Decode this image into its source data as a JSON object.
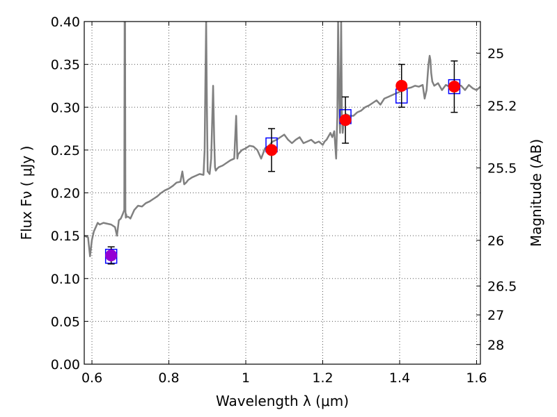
{
  "chart_data": {
    "type": "scatter",
    "title": "",
    "xlabel": "Wavelength  λ (μm)",
    "ylabel": "Flux  Fν  ( μJy )",
    "ylabel_right": "Magnitude (AB)",
    "xlim": [
      0.58,
      1.61
    ],
    "ylim": [
      0,
      0.4
    ],
    "grid": true,
    "x_ticks": [
      {
        "v": 0.6,
        "label": "0.6"
      },
      {
        "v": 0.8,
        "label": "0.8"
      },
      {
        "v": 1.0,
        "label": "1"
      },
      {
        "v": 1.2,
        "label": "1.2"
      },
      {
        "v": 1.4,
        "label": "1.4"
      },
      {
        "v": 1.6,
        "label": "1.6"
      }
    ],
    "y_ticks": [
      {
        "v": 0.0,
        "label": "0.00"
      },
      {
        "v": 0.05,
        "label": "0.05"
      },
      {
        "v": 0.1,
        "label": "0.10"
      },
      {
        "v": 0.15,
        "label": "0.15"
      },
      {
        "v": 0.2,
        "label": "0.20"
      },
      {
        "v": 0.25,
        "label": "0.25"
      },
      {
        "v": 0.3,
        "label": "0.30"
      },
      {
        "v": 0.35,
        "label": "0.35"
      },
      {
        "v": 0.4,
        "label": "0.40"
      }
    ],
    "mag_ticks": [
      {
        "v": 25,
        "label": "25"
      },
      {
        "v": 25.2,
        "label": "25.2"
      },
      {
        "v": 25.5,
        "label": "25.5"
      },
      {
        "v": 26,
        "label": "26"
      },
      {
        "v": 26.5,
        "label": "26.5"
      },
      {
        "v": 27,
        "label": "27"
      },
      {
        "v": 28,
        "label": "28"
      }
    ],
    "series": [
      {
        "kind": "line",
        "color": "#808080",
        "x": [
          0.58,
          0.59,
          0.595,
          0.6,
          0.605,
          0.61,
          0.615,
          0.62,
          0.63,
          0.64,
          0.65,
          0.66,
          0.665,
          0.67,
          0.675,
          0.68,
          0.684,
          0.685,
          0.686,
          0.687,
          0.688,
          0.689,
          0.69,
          0.695,
          0.7,
          0.71,
          0.72,
          0.73,
          0.74,
          0.75,
          0.76,
          0.77,
          0.78,
          0.79,
          0.8,
          0.81,
          0.82,
          0.83,
          0.835,
          0.84,
          0.845,
          0.85,
          0.86,
          0.87,
          0.88,
          0.89,
          0.893,
          0.895,
          0.897,
          0.899,
          0.901,
          0.903,
          0.906,
          0.91,
          0.915,
          0.918,
          0.92,
          0.922,
          0.925,
          0.93,
          0.94,
          0.95,
          0.96,
          0.97,
          0.975,
          0.978,
          0.98,
          0.99,
          1.0,
          1.01,
          1.02,
          1.03,
          1.04,
          1.05,
          1.06,
          1.07,
          1.08,
          1.09,
          1.1,
          1.11,
          1.12,
          1.13,
          1.14,
          1.15,
          1.16,
          1.17,
          1.18,
          1.19,
          1.2,
          1.205,
          1.21,
          1.22,
          1.225,
          1.23,
          1.235,
          1.238,
          1.24,
          1.242,
          1.245,
          1.248,
          1.25,
          1.252,
          1.255,
          1.258,
          1.26,
          1.27,
          1.28,
          1.29,
          1.3,
          1.31,
          1.32,
          1.33,
          1.34,
          1.35,
          1.36,
          1.37,
          1.38,
          1.39,
          1.4,
          1.41,
          1.42,
          1.43,
          1.44,
          1.45,
          1.46,
          1.465,
          1.47,
          1.475,
          1.478,
          1.48,
          1.482,
          1.485,
          1.49,
          1.5,
          1.51,
          1.52,
          1.53,
          1.54,
          1.55,
          1.56,
          1.57,
          1.58,
          1.59,
          1.6,
          1.61
        ],
        "y": [
          0.15,
          0.148,
          0.126,
          0.145,
          0.155,
          0.16,
          0.165,
          0.163,
          0.165,
          0.164,
          0.163,
          0.16,
          0.15,
          0.168,
          0.17,
          0.175,
          0.18,
          0.4,
          0.4,
          0.18,
          0.171,
          0.175,
          0.172,
          0.172,
          0.17,
          0.18,
          0.185,
          0.184,
          0.188,
          0.19,
          0.193,
          0.196,
          0.2,
          0.203,
          0.205,
          0.208,
          0.212,
          0.213,
          0.225,
          0.21,
          0.212,
          0.215,
          0.218,
          0.22,
          0.222,
          0.221,
          0.25,
          0.33,
          0.4,
          0.3,
          0.225,
          0.224,
          0.222,
          0.24,
          0.325,
          0.26,
          0.23,
          0.226,
          0.228,
          0.23,
          0.232,
          0.235,
          0.238,
          0.24,
          0.29,
          0.24,
          0.245,
          0.25,
          0.252,
          0.255,
          0.254,
          0.25,
          0.24,
          0.252,
          0.255,
          0.26,
          0.262,
          0.265,
          0.268,
          0.262,
          0.258,
          0.262,
          0.265,
          0.258,
          0.26,
          0.262,
          0.258,
          0.26,
          0.256,
          0.26,
          0.262,
          0.27,
          0.265,
          0.272,
          0.24,
          0.29,
          0.4,
          0.33,
          0.27,
          0.4,
          0.29,
          0.27,
          0.285,
          0.29,
          0.292,
          0.29,
          0.29,
          0.294,
          0.296,
          0.3,
          0.302,
          0.305,
          0.308,
          0.303,
          0.31,
          0.312,
          0.314,
          0.316,
          0.318,
          0.32,
          0.322,
          0.323,
          0.325,
          0.324,
          0.326,
          0.31,
          0.32,
          0.35,
          0.36,
          0.355,
          0.34,
          0.33,
          0.325,
          0.328,
          0.32,
          0.326,
          0.324,
          0.322,
          0.326,
          0.325,
          0.32,
          0.326,
          0.322,
          0.32,
          0.324
        ]
      },
      {
        "kind": "points",
        "marker": "square",
        "color": "#0000ff",
        "x": [
          0.65,
          1.067,
          1.259,
          1.405,
          1.542
        ],
        "y": [
          0.126,
          0.256,
          0.289,
          0.313,
          0.324
        ]
      },
      {
        "kind": "points",
        "marker": "circle",
        "color": "#ff0000",
        "x": [
          0.65,
          1.067,
          1.259,
          1.405,
          1.542
        ],
        "y": [
          0.127,
          0.25,
          0.285,
          0.325,
          0.324
        ],
        "yerr": [
          0.01,
          0.025,
          0.027,
          0.025,
          0.03
        ],
        "point_colors": [
          "#9400d3",
          "#ff0000",
          "#ff0000",
          "#ff0000",
          "#ff0000"
        ]
      }
    ]
  }
}
